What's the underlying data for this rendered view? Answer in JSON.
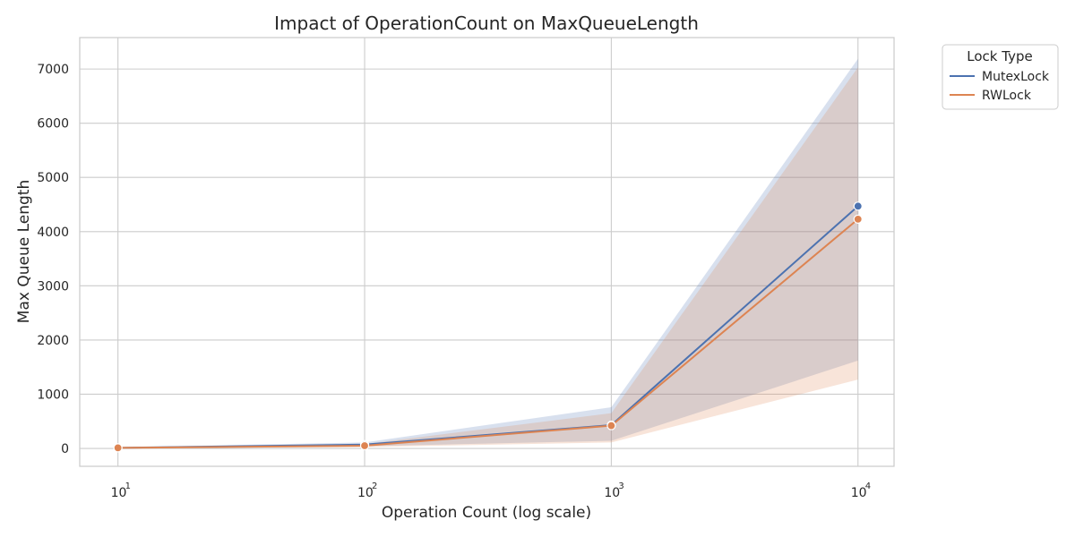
{
  "chart_data": {
    "type": "line",
    "title": "Impact of OperationCount on MaxQueueLength",
    "xlabel": "Operation Count (log scale)",
    "ylabel": "Max Queue Length",
    "x_scale": "log",
    "x_tick_base": "10",
    "x_ticks": [
      {
        "value": 10,
        "exp": "1"
      },
      {
        "value": 100,
        "exp": "2"
      },
      {
        "value": 1000,
        "exp": "3"
      },
      {
        "value": 10000,
        "exp": "4"
      }
    ],
    "xlim": [
      7,
      14000
    ],
    "ylim": [
      -330,
      7580
    ],
    "y_ticks": [
      0,
      1000,
      2000,
      3000,
      4000,
      5000,
      6000,
      7000
    ],
    "grid": true,
    "legend": {
      "title": "Lock Type",
      "position": "upper-right-outside"
    },
    "series": [
      {
        "name": "MutexLock",
        "color": "#4c72b0",
        "x": [
          10,
          100,
          1000,
          10000
        ],
        "y": [
          10,
          70,
          430,
          4470
        ],
        "ci_low": [
          5,
          40,
          140,
          1620
        ],
        "ci_high": [
          20,
          110,
          760,
          7190
        ]
      },
      {
        "name": "RWLock",
        "color": "#dd8452",
        "x": [
          10,
          100,
          1000,
          10000
        ],
        "y": [
          10,
          50,
          420,
          4230
        ],
        "ci_low": [
          5,
          25,
          110,
          1270
        ],
        "ci_high": [
          15,
          80,
          650,
          7030
        ]
      }
    ]
  }
}
